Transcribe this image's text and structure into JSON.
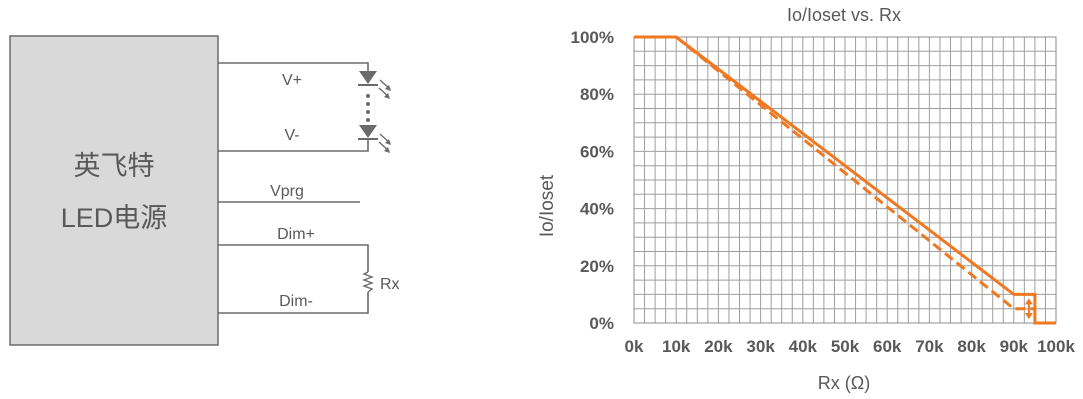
{
  "circuit": {
    "supply_name_line1": "英飞特",
    "supply_name_line2": "LED电源",
    "pin_vplus": "V+",
    "pin_vminus": "V-",
    "pin_vprg": "Vprg",
    "pin_dimplus": "Dim+",
    "pin_dimminus": "Dim-",
    "resistor_label": "Rx"
  },
  "colors": {
    "series": "#f07820",
    "supply_box": "#d9d9d9",
    "text": "#595959"
  },
  "chart_data": {
    "type": "line",
    "title": "Io/Ioset vs. Rx",
    "xlabel": "Rx (Ω)",
    "ylabel": "Io/Ioset",
    "xlim": [
      0,
      100
    ],
    "ylim": [
      0,
      100
    ],
    "x_ticks": [
      0,
      10,
      20,
      30,
      40,
      50,
      60,
      70,
      80,
      90,
      100
    ],
    "x_tick_labels": [
      "0k",
      "10k",
      "20k",
      "30k",
      "40k",
      "50k",
      "60k",
      "70k",
      "80k",
      "90k",
      "100k"
    ],
    "y_ticks": [
      0,
      20,
      40,
      60,
      80,
      100
    ],
    "y_tick_labels": [
      "0%",
      "20%",
      "40%",
      "60%",
      "80%",
      "100%"
    ],
    "grid": true,
    "series": [
      {
        "style": "solid",
        "points": [
          [
            0,
            100
          ],
          [
            10,
            100
          ],
          [
            90,
            10
          ],
          [
            95,
            10
          ],
          [
            95,
            0
          ],
          [
            100,
            0
          ]
        ]
      },
      {
        "style": "dashed",
        "points": [
          [
            10,
            100
          ],
          [
            90,
            5
          ],
          [
            95,
            5
          ]
        ]
      }
    ],
    "annotations": [
      {
        "type": "double-arrow",
        "x": 95,
        "y_from": 10,
        "y_to": 0
      }
    ]
  }
}
